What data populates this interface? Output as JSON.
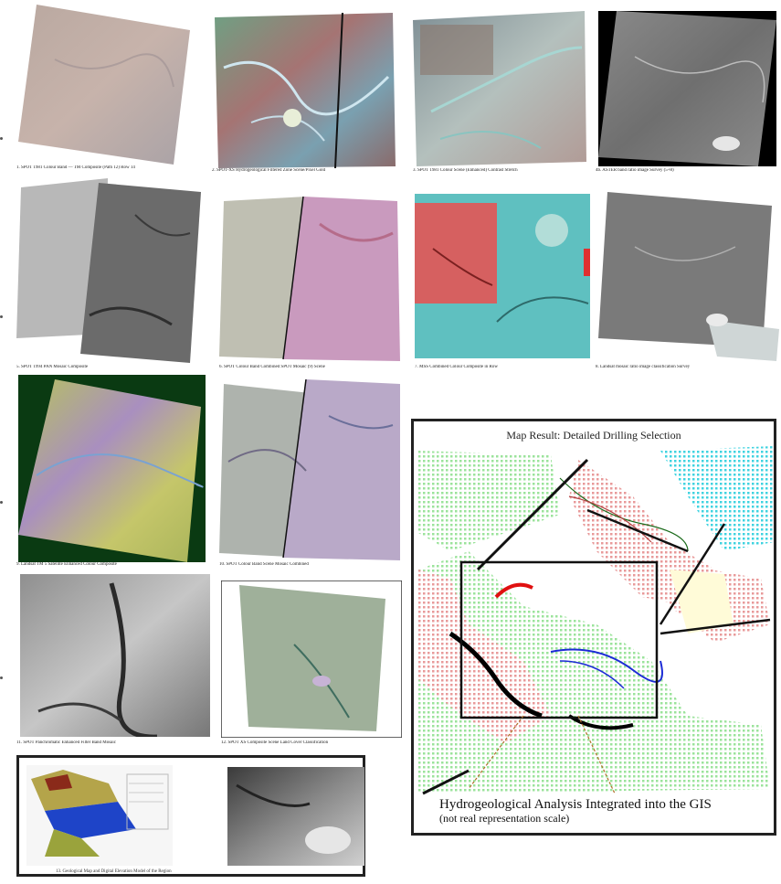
{
  "captions": {
    "r1c1": "1. SPOT 1981 Colour Band — TM Composite (Path 12) Row 14",
    "r1c2": "2. SPOT-XS Hydrogeological Filtered Zone Scene/Pixel Gold",
    "r1c3": "3. SPOT 1981 Colour Scene (Enhanced) Contrast Stretch",
    "r1c4": "4b. ASTER band ratio image Survey (5+8)",
    "r2c1": "5. SPOT 1994 PAN Mosaic Composite",
    "r2c2": "6. SPOT Colour Band Combined SPOT Mosaic (9) Scene",
    "r2c3": "7. MSS Combined Colour Composite in Row",
    "r2c4": "8. Landsat mosaic ratio image classification Survey",
    "r3c1": "9. Landsat TM 5 Satellite Enhanced Colour Composite",
    "r3c2": "10. SPOT Colour Band Scene Mosaic Combined",
    "r4c1": "11. SPOT Panchromatic Enhanced Filter Band Mosaic",
    "r4c2": "12. SPOT XS Composite Scene Land Cover Classification",
    "bottom": "13. Geological Map and Digital Elevation Model of the Region"
  },
  "map": {
    "title": "Map Result: Detailed Drilling Selection",
    "caption_line1": "Hydrogeological Analysis Integrated into the GIS",
    "caption_line2": "(not real representation scale)"
  },
  "colors": {
    "border": "#222222",
    "dot_green": "#9be39b",
    "dot_cyan": "#3fd3e0",
    "dot_pink": "#e89a9a",
    "river_blue": "#1c2bd6",
    "target_red": "#e01010"
  }
}
